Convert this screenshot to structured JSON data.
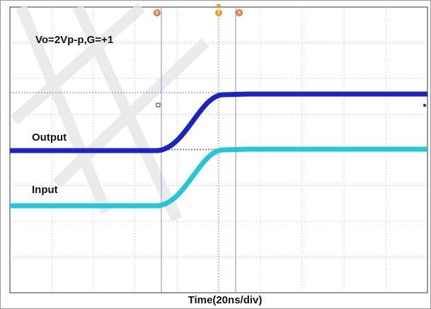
{
  "annotation": "Vo=2Vp-p,G=+1",
  "traces": [
    {
      "label": "Output"
    },
    {
      "label": "Input"
    }
  ],
  "markers": [
    "b",
    "T",
    "a"
  ],
  "x_label": "Time(20ns/div)"
}
